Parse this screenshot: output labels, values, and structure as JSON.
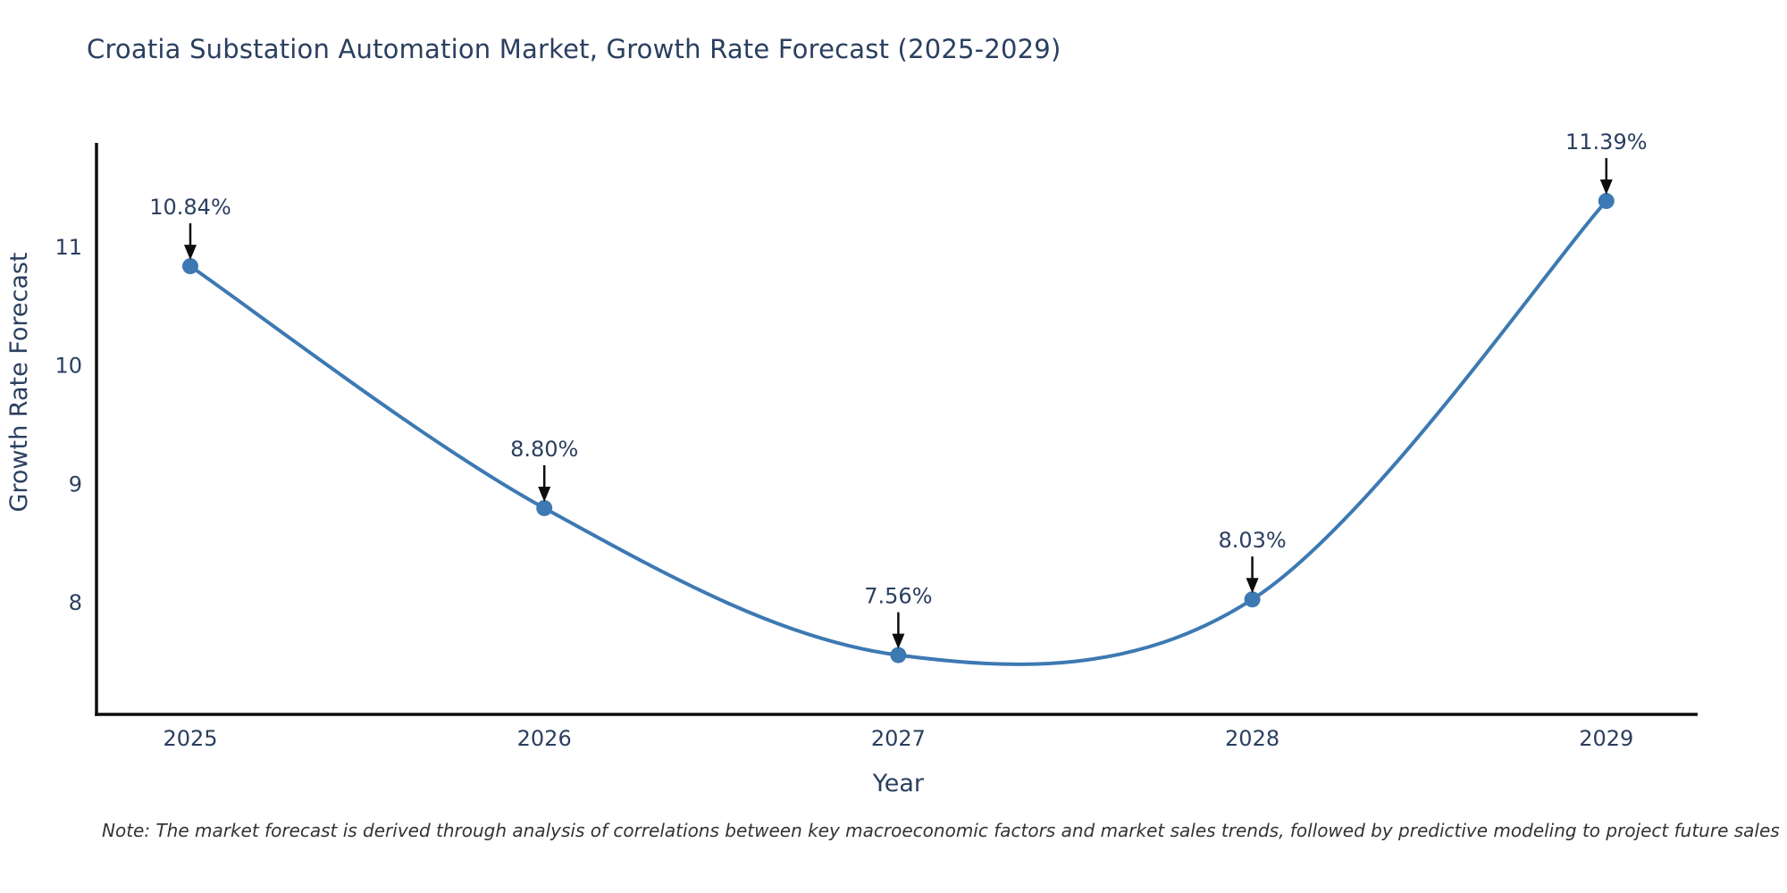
{
  "title": "Croatia Substation Automation Market, Growth Rate Forecast (2025-2029)",
  "note": "Note: The market forecast is derived through analysis of correlations between key macroeconomic factors and market sales trends, followed by predictive modeling to project future sales",
  "chart_data": {
    "type": "line",
    "title": "Croatia Substation Automation Market, Growth Rate Forecast (2025-2029)",
    "x": [
      2025,
      2026,
      2027,
      2028,
      2029
    ],
    "series": [
      {
        "name": "Growth Rate Forecast",
        "values": [
          10.84,
          8.8,
          7.56,
          8.03,
          11.39
        ]
      }
    ],
    "point_labels": [
      "10.84%",
      "8.80%",
      "7.56%",
      "8.03%",
      "11.39%"
    ],
    "xlabel": "Year",
    "ylabel": "Growth Rate Forecast",
    "yticks": [
      8,
      9,
      10,
      11
    ],
    "xlim": [
      2024.735,
      2029.258
    ],
    "ylim": [
      7.06,
      11.88
    ],
    "line_shape": "spline",
    "grid": false,
    "legend": "none",
    "annotations": "value labels with downward black arrows above each point",
    "colors": {
      "line": "#3d79b3",
      "marker": "#3d79b3",
      "axis": "#0d0d0d",
      "arrow": "#0d0d0d",
      "text": "#2a3f5f",
      "title": "#2a3f5f"
    }
  }
}
